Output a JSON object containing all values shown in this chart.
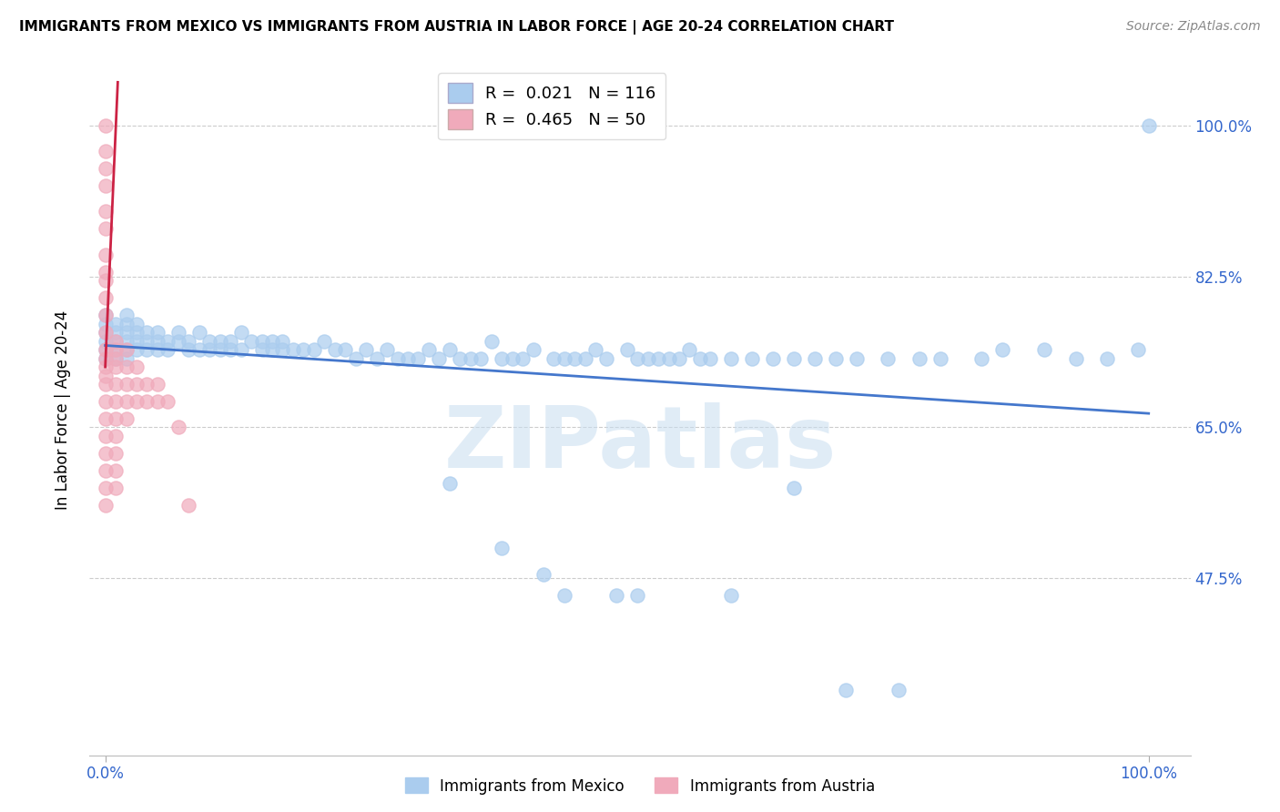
{
  "title": "IMMIGRANTS FROM MEXICO VS IMMIGRANTS FROM AUSTRIA IN LABOR FORCE | AGE 20-24 CORRELATION CHART",
  "source": "Source: ZipAtlas.com",
  "ylabel": "In Labor Force | Age 20-24",
  "y_tick_values": [
    0.475,
    0.65,
    0.825,
    1.0
  ],
  "y_tick_labels": [
    "47.5%",
    "65.0%",
    "82.5%",
    "100.0%"
  ],
  "x_tick_values": [
    0.0,
    1.0
  ],
  "x_tick_labels": [
    "0.0%",
    "100.0%"
  ],
  "xlim": [
    -0.015,
    1.04
  ],
  "ylim": [
    0.27,
    1.07
  ],
  "blue_color": "#aaccee",
  "pink_color": "#f0aabb",
  "line_blue_color": "#4477cc",
  "line_pink_color": "#cc2244",
  "watermark": "ZIPatlas",
  "legend_entries": [
    {
      "label": "R =  0.021   N = 116",
      "color": "#aaccee"
    },
    {
      "label": "R =  0.465   N = 50",
      "color": "#f0aabb"
    }
  ],
  "bottom_legend": [
    {
      "label": "Immigrants from Mexico",
      "color": "#aaccee"
    },
    {
      "label": "Immigrants from Austria",
      "color": "#f0aabb"
    }
  ],
  "mexico_x": [
    0.0,
    0.0,
    0.0,
    0.0,
    0.0,
    0.0,
    0.01,
    0.01,
    0.01,
    0.01,
    0.01,
    0.02,
    0.02,
    0.02,
    0.02,
    0.02,
    0.02,
    0.03,
    0.03,
    0.03,
    0.03,
    0.04,
    0.04,
    0.04,
    0.05,
    0.05,
    0.05,
    0.06,
    0.06,
    0.07,
    0.07,
    0.08,
    0.08,
    0.09,
    0.09,
    0.1,
    0.1,
    0.11,
    0.11,
    0.12,
    0.12,
    0.13,
    0.13,
    0.14,
    0.15,
    0.15,
    0.16,
    0.16,
    0.17,
    0.17,
    0.18,
    0.19,
    0.2,
    0.21,
    0.22,
    0.23,
    0.24,
    0.25,
    0.26,
    0.27,
    0.28,
    0.29,
    0.3,
    0.31,
    0.32,
    0.33,
    0.34,
    0.35,
    0.36,
    0.37,
    0.38,
    0.39,
    0.4,
    0.41,
    0.43,
    0.44,
    0.45,
    0.46,
    0.47,
    0.48,
    0.5,
    0.51,
    0.52,
    0.53,
    0.54,
    0.55,
    0.56,
    0.57,
    0.58,
    0.6,
    0.62,
    0.64,
    0.66,
    0.68,
    0.7,
    0.72,
    0.75,
    0.78,
    0.8,
    0.84,
    0.86,
    0.9,
    0.93,
    0.96,
    0.99,
    1.0,
    0.33,
    0.38,
    0.42,
    0.44,
    0.49,
    0.51,
    0.6,
    0.66,
    0.71,
    0.76
  ],
  "mexico_y": [
    0.75,
    0.74,
    0.73,
    0.76,
    0.77,
    0.78,
    0.75,
    0.74,
    0.73,
    0.76,
    0.77,
    0.74,
    0.73,
    0.75,
    0.76,
    0.77,
    0.78,
    0.74,
    0.75,
    0.76,
    0.77,
    0.74,
    0.75,
    0.76,
    0.74,
    0.75,
    0.76,
    0.75,
    0.74,
    0.75,
    0.76,
    0.74,
    0.75,
    0.74,
    0.76,
    0.74,
    0.75,
    0.75,
    0.74,
    0.74,
    0.75,
    0.74,
    0.76,
    0.75,
    0.75,
    0.74,
    0.74,
    0.75,
    0.75,
    0.74,
    0.74,
    0.74,
    0.74,
    0.75,
    0.74,
    0.74,
    0.73,
    0.74,
    0.73,
    0.74,
    0.73,
    0.73,
    0.73,
    0.74,
    0.73,
    0.74,
    0.73,
    0.73,
    0.73,
    0.75,
    0.73,
    0.73,
    0.73,
    0.74,
    0.73,
    0.73,
    0.73,
    0.73,
    0.74,
    0.73,
    0.74,
    0.73,
    0.73,
    0.73,
    0.73,
    0.73,
    0.74,
    0.73,
    0.73,
    0.73,
    0.73,
    0.73,
    0.73,
    0.73,
    0.73,
    0.73,
    0.73,
    0.73,
    0.73,
    0.73,
    0.74,
    0.74,
    0.73,
    0.73,
    0.74,
    1.0,
    0.585,
    0.51,
    0.48,
    0.455,
    0.455,
    0.455,
    0.455,
    0.58,
    0.345,
    0.345
  ],
  "austria_x": [
    0.0,
    0.0,
    0.0,
    0.0,
    0.0,
    0.0,
    0.0,
    0.0,
    0.0,
    0.0,
    0.0,
    0.0,
    0.0,
    0.0,
    0.0,
    0.0,
    0.0,
    0.0,
    0.0,
    0.0,
    0.0,
    0.0,
    0.0,
    0.0,
    0.01,
    0.01,
    0.01,
    0.01,
    0.01,
    0.01,
    0.01,
    0.01,
    0.01,
    0.01,
    0.01,
    0.02,
    0.02,
    0.02,
    0.02,
    0.02,
    0.03,
    0.03,
    0.03,
    0.04,
    0.04,
    0.05,
    0.05,
    0.06,
    0.07,
    0.08
  ],
  "austria_y": [
    1.0,
    0.97,
    0.95,
    0.93,
    0.9,
    0.88,
    0.85,
    0.83,
    0.82,
    0.8,
    0.78,
    0.76,
    0.74,
    0.73,
    0.72,
    0.71,
    0.7,
    0.68,
    0.66,
    0.64,
    0.62,
    0.6,
    0.58,
    0.56,
    0.75,
    0.74,
    0.73,
    0.72,
    0.7,
    0.68,
    0.66,
    0.64,
    0.62,
    0.6,
    0.58,
    0.74,
    0.72,
    0.7,
    0.68,
    0.66,
    0.72,
    0.7,
    0.68,
    0.7,
    0.68,
    0.7,
    0.68,
    0.68,
    0.65,
    0.56
  ]
}
